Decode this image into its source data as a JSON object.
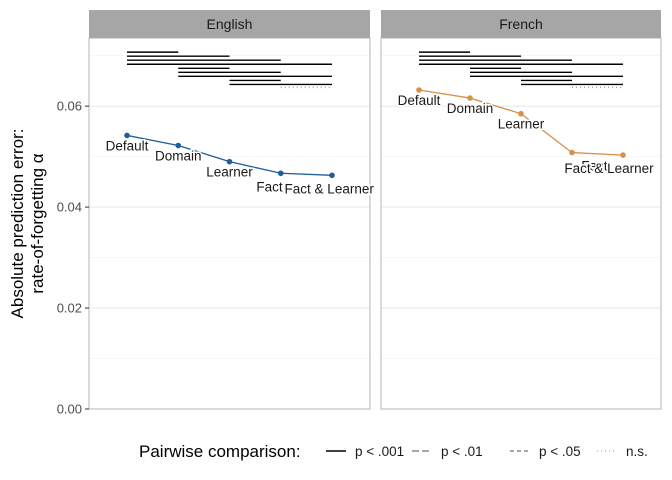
{
  "chart_data": {
    "type": "line",
    "ylabel_lines": [
      "Absolute prediction error:",
      "rate-of-forgetting α"
    ],
    "xlabel": "",
    "ylim": [
      0,
      0.0735
    ],
    "yticks": [
      0.0,
      0.02,
      0.04,
      0.06
    ],
    "ytick_labels": [
      "0.00",
      "0.02",
      "0.04",
      "0.06"
    ],
    "grid": true,
    "legend": {
      "position": "bottom",
      "title": "Pairwise comparison:",
      "entries": [
        {
          "label": "p < .001",
          "linetype": "solid"
        },
        {
          "label": "p < .01",
          "linetype": "longdash"
        },
        {
          "label": "p < .05",
          "linetype": "dashed"
        },
        {
          "label": "n.s.",
          "linetype": "dotted"
        }
      ]
    },
    "categories": [
      "Default",
      "Domain",
      "Learner",
      "Fact",
      "Fact & Learner"
    ],
    "panels": [
      {
        "name": "English",
        "color": "#1f5f99",
        "values": [
          0.0542,
          0.0522,
          0.049,
          0.0467,
          0.0463
        ],
        "label_offsets": [
          [
            0,
            1.0
          ],
          [
            0,
            1.0
          ],
          [
            0,
            1.0
          ],
          [
            -0.8,
            1.2
          ],
          [
            -0.2,
            1.2
          ]
        ],
        "comparisons": [
          {
            "from": 0,
            "to": 1,
            "y": 0.0707,
            "linetype": "solid"
          },
          {
            "from": 0,
            "to": 2,
            "y": 0.0699,
            "linetype": "solid"
          },
          {
            "from": 0,
            "to": 3,
            "y": 0.0691,
            "linetype": "solid"
          },
          {
            "from": 0,
            "to": 4,
            "y": 0.0683,
            "linetype": "solid"
          },
          {
            "from": 1,
            "to": 2,
            "y": 0.0675,
            "linetype": "solid"
          },
          {
            "from": 1,
            "to": 3,
            "y": 0.0667,
            "linetype": "solid"
          },
          {
            "from": 1,
            "to": 4,
            "y": 0.0659,
            "linetype": "solid"
          },
          {
            "from": 2,
            "to": 3,
            "y": 0.0651,
            "linetype": "solid"
          },
          {
            "from": 2,
            "to": 4,
            "y": 0.0643,
            "linetype": "solid"
          },
          {
            "from": 3,
            "to": 4,
            "y": 0.0637,
            "linetype": "dotted"
          }
        ]
      },
      {
        "name": "French",
        "color": "#d4924a",
        "values": [
          0.0632,
          0.0616,
          0.0585,
          0.0508,
          0.0503
        ],
        "label_offsets": [
          [
            0,
            1.0
          ],
          [
            0,
            1.0
          ],
          [
            0,
            1.0
          ],
          [
            1.6,
            1.2
          ],
          [
            -1.0,
            1.2
          ]
        ],
        "comparisons": [
          {
            "from": 0,
            "to": 1,
            "y": 0.0707,
            "linetype": "solid"
          },
          {
            "from": 0,
            "to": 2,
            "y": 0.0699,
            "linetype": "solid"
          },
          {
            "from": 0,
            "to": 3,
            "y": 0.0691,
            "linetype": "solid"
          },
          {
            "from": 0,
            "to": 4,
            "y": 0.0683,
            "linetype": "solid"
          },
          {
            "from": 1,
            "to": 2,
            "y": 0.0675,
            "linetype": "solid"
          },
          {
            "from": 1,
            "to": 3,
            "y": 0.0667,
            "linetype": "solid"
          },
          {
            "from": 1,
            "to": 4,
            "y": 0.0659,
            "linetype": "solid"
          },
          {
            "from": 2,
            "to": 3,
            "y": 0.0651,
            "linetype": "solid"
          },
          {
            "from": 2,
            "to": 4,
            "y": 0.0643,
            "linetype": "solid"
          },
          {
            "from": 3,
            "to": 4,
            "y": 0.0637,
            "linetype": "dotted"
          }
        ]
      }
    ]
  }
}
